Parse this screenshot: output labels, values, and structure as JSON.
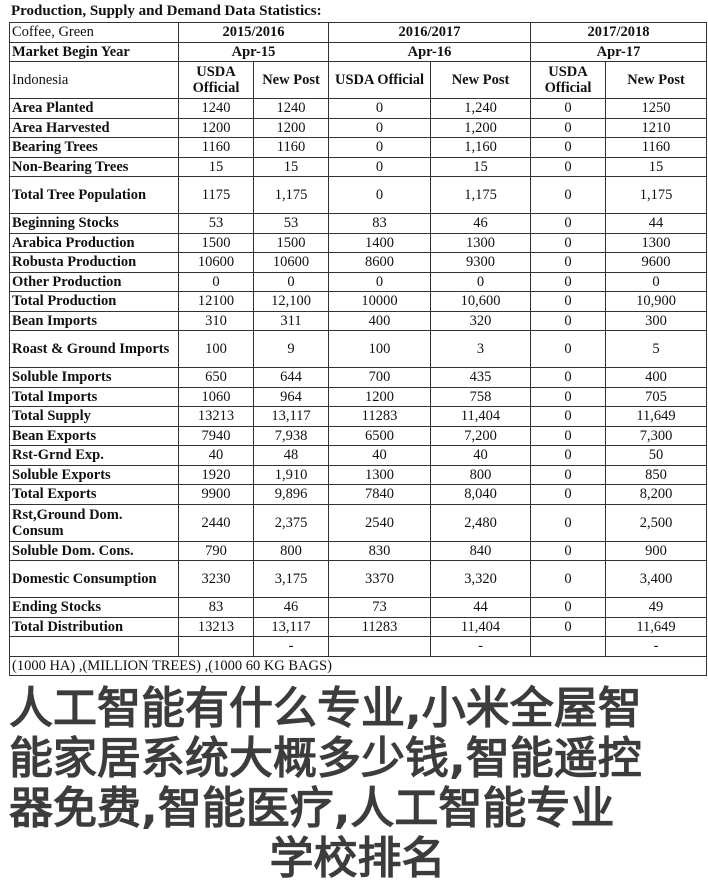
{
  "title": "Production, Supply and Demand Data Statistics:",
  "header": {
    "commodity": "Coffee, Green",
    "years": [
      "2015/2016",
      "2016/2017",
      "2017/2018"
    ],
    "market_label": "Market Begin Year",
    "market_begin": [
      "Apr-15",
      "Apr-16",
      "Apr-17"
    ],
    "country": "Indonesia",
    "sub": [
      "USDA Official",
      "New Post",
      "USDA Official",
      "New Post",
      "USDA Official",
      "New Post"
    ]
  },
  "rows": [
    {
      "label": "Area Planted",
      "v": [
        "1240",
        "1240",
        "0",
        "1,240",
        "0",
        "1250"
      ]
    },
    {
      "label": "Area Harvested",
      "v": [
        "1200",
        "1200",
        "0",
        "1,200",
        "0",
        "1210"
      ]
    },
    {
      "label": "Bearing Trees",
      "v": [
        "1160",
        "1160",
        "0",
        "1,160",
        "0",
        "1160"
      ]
    },
    {
      "label": "Non-Bearing Trees",
      "v": [
        "15",
        "15",
        "0",
        "15",
        "0",
        "15"
      ]
    },
    {
      "label": "Total Tree Population",
      "tall": true,
      "v": [
        "1175",
        "1,175",
        "0",
        "1,175",
        "0",
        "1,175"
      ]
    },
    {
      "label": "Beginning Stocks",
      "v": [
        "53",
        "53",
        "83",
        "46",
        "0",
        "44"
      ]
    },
    {
      "label": "Arabica Production",
      "v": [
        "1500",
        "1500",
        "1400",
        "1300",
        "0",
        "1300"
      ]
    },
    {
      "label": "Robusta Production",
      "v": [
        "10600",
        "10600",
        "8600",
        "9300",
        "0",
        "9600"
      ]
    },
    {
      "label": "Other Production",
      "v": [
        "0",
        "0",
        "0",
        "0",
        "0",
        "0"
      ]
    },
    {
      "label": "Total Production",
      "v": [
        "12100",
        "12,100",
        "10000",
        "10,600",
        "0",
        "10,900"
      ]
    },
    {
      "label": "Bean Imports",
      "v": [
        "310",
        "311",
        "400",
        "320",
        "0",
        "300"
      ]
    },
    {
      "label": "Roast & Ground Imports",
      "tall": true,
      "v": [
        "100",
        "9",
        "100",
        "3",
        "0",
        "5"
      ]
    },
    {
      "label": "Soluble Imports",
      "v": [
        "650",
        "644",
        "700",
        "435",
        "0",
        "400"
      ]
    },
    {
      "label": "Total Imports",
      "v": [
        "1060",
        "964",
        "1200",
        "758",
        "0",
        "705"
      ]
    },
    {
      "label": "Total Supply",
      "v": [
        "13213",
        "13,117",
        "11283",
        "11,404",
        "0",
        "11,649"
      ]
    },
    {
      "label": "Bean Exports",
      "v": [
        "7940",
        "7,938",
        "6500",
        "7,200",
        "0",
        "7,300"
      ]
    },
    {
      "label": "Rst-Grnd Exp.",
      "v": [
        "40",
        "48",
        "40",
        "40",
        "0",
        "50"
      ]
    },
    {
      "label": "Soluble Exports",
      "v": [
        "1920",
        "1,910",
        "1300",
        "800",
        "0",
        "850"
      ]
    },
    {
      "label": "Total Exports",
      "v": [
        "9900",
        "9,896",
        "7840",
        "8,040",
        "0",
        "8,200"
      ]
    },
    {
      "label": "Rst,Ground Dom. Consum",
      "tall": true,
      "v": [
        "2440",
        "2,375",
        "2540",
        "2,480",
        "0",
        "2,500"
      ]
    },
    {
      "label": "Soluble Dom. Cons.",
      "v": [
        "790",
        "800",
        "830",
        "840",
        "0",
        "900"
      ]
    },
    {
      "label": "Domestic Consumption",
      "tall": true,
      "v": [
        "3230",
        "3,175",
        "3370",
        "3,320",
        "0",
        "3,400"
      ]
    },
    {
      "label": "Ending Stocks",
      "v": [
        "83",
        "46",
        "73",
        "44",
        "0",
        "49"
      ]
    },
    {
      "label": "Total Distribution",
      "v": [
        "13213",
        "13,117",
        "11283",
        "11,404",
        "0",
        "11,649"
      ]
    },
    {
      "label": "",
      "v": [
        "",
        "-",
        "",
        "-",
        "",
        "-"
      ]
    }
  ],
  "footer": "(1000 HA) ,(MILLION TREES) ,(1000 60 KG BAGS)",
  "watermark": [
    "人工智能有什么专业,小米全屋智",
    "能家居系统大概多少钱,智能遥控",
    "器免费,智能医疗,人工智能专业",
    "学校排名"
  ]
}
